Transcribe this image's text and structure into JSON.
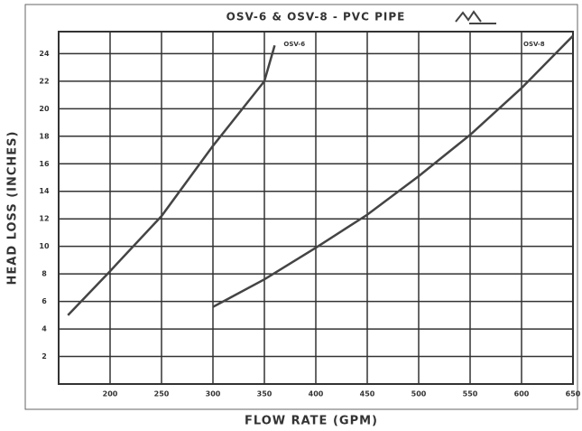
{
  "chart_data": {
    "type": "line",
    "title": "OSV-6 & OSV-8 - PVC PIPE",
    "x_label": "FLOW RATE (GPM)",
    "y_label": "HEAD LOSS (INCHES)",
    "xlim": [
      150,
      650
    ],
    "ylim": [
      0,
      25.6
    ],
    "xticks": [
      200,
      250,
      300,
      350,
      400,
      450,
      500,
      550,
      600,
      650
    ],
    "yticks": [
      2,
      4,
      6,
      8,
      10,
      12,
      14,
      16,
      18,
      20,
      22,
      24
    ],
    "grid": true,
    "series": [
      {
        "name": "OSV-6",
        "color": "#444444",
        "x": [
          159,
          200,
          250,
          300,
          350,
          360
        ],
        "values": [
          5.0,
          8.2,
          12.2,
          17.3,
          22.0,
          24.6
        ]
      },
      {
        "name": "OSV-8",
        "color": "#444444",
        "x": [
          300,
          350,
          400,
          450,
          500,
          550,
          600,
          650
        ],
        "values": [
          5.6,
          7.6,
          9.9,
          12.3,
          15.1,
          18.1,
          21.5,
          25.3
        ]
      }
    ]
  }
}
